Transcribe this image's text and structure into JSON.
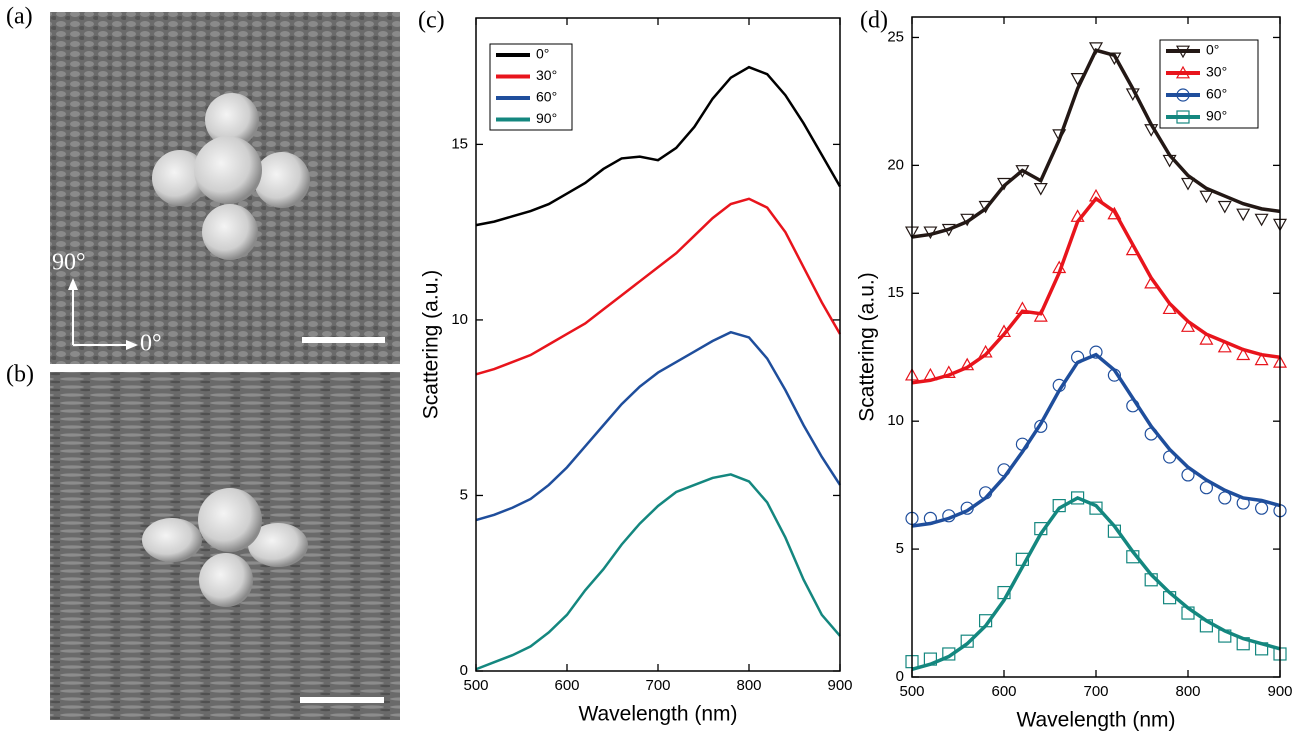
{
  "images": [
    {
      "label": "(a)",
      "annotations": [
        "90°",
        "0°"
      ]
    },
    {
      "label": "(b)"
    }
  ],
  "chart_data": [
    {
      "type": "line",
      "label": "(c)",
      "x_label": "Wavelength (nm)",
      "y_label": "Scattering (a.u.)",
      "x": [
        500,
        520,
        540,
        560,
        580,
        600,
        620,
        640,
        660,
        680,
        700,
        720,
        740,
        760,
        780,
        800,
        820,
        840,
        860,
        880,
        900
      ],
      "xlim": [
        500,
        900
      ],
      "xticks": [
        500,
        600,
        700,
        800,
        900
      ],
      "ylim": [
        0,
        18.6
      ],
      "yticks": [
        0,
        5,
        10,
        15
      ],
      "series": [
        {
          "name": "0°",
          "color": "#000000",
          "values": [
            12.7,
            12.8,
            12.95,
            13.1,
            13.3,
            13.6,
            13.9,
            14.3,
            14.6,
            14.65,
            14.55,
            14.9,
            15.5,
            16.3,
            16.9,
            17.2,
            17.0,
            16.4,
            15.6,
            14.7,
            13.8
          ]
        },
        {
          "name": "30°",
          "color": "#e8141c",
          "values": [
            8.45,
            8.6,
            8.8,
            9.0,
            9.3,
            9.6,
            9.9,
            10.3,
            10.7,
            11.1,
            11.5,
            11.9,
            12.4,
            12.9,
            13.3,
            13.45,
            13.2,
            12.5,
            11.5,
            10.5,
            9.6
          ]
        },
        {
          "name": "60°",
          "color": "#1f4e9c",
          "values": [
            4.3,
            4.45,
            4.65,
            4.9,
            5.3,
            5.8,
            6.4,
            7.0,
            7.6,
            8.1,
            8.5,
            8.8,
            9.1,
            9.4,
            9.65,
            9.5,
            8.9,
            8.0,
            7.0,
            6.1,
            5.3
          ]
        },
        {
          "name": "90°",
          "color": "#14877f",
          "values": [
            0.05,
            0.25,
            0.45,
            0.7,
            1.1,
            1.6,
            2.3,
            2.9,
            3.6,
            4.2,
            4.7,
            5.1,
            5.3,
            5.5,
            5.6,
            5.4,
            4.8,
            3.8,
            2.6,
            1.6,
            1.0
          ]
        }
      ]
    },
    {
      "type": "line",
      "label": "(d)",
      "x_label": "Wavelength (nm)",
      "y_label": "Scattering (a.u.)",
      "x": [
        500,
        520,
        540,
        560,
        580,
        600,
        620,
        640,
        660,
        680,
        700,
        720,
        740,
        760,
        780,
        800,
        820,
        840,
        860,
        880,
        900
      ],
      "xlim": [
        500,
        900
      ],
      "xticks": [
        500,
        600,
        700,
        800,
        900
      ],
      "ylim": [
        0,
        25.8
      ],
      "yticks": [
        0,
        5,
        10,
        15,
        20,
        25
      ],
      "series": [
        {
          "name": "0°",
          "color": "#231815",
          "marker": "triangle-down",
          "values": [
            17.2,
            17.3,
            17.5,
            17.8,
            18.3,
            19.2,
            19.8,
            19.4,
            21.0,
            23.0,
            24.5,
            24.3,
            23.0,
            21.6,
            20.4,
            19.6,
            19.1,
            18.8,
            18.5,
            18.3,
            18.2
          ],
          "marker_values": [
            17.4,
            17.4,
            17.5,
            17.9,
            18.4,
            19.3,
            19.8,
            19.1,
            21.2,
            23.4,
            24.6,
            24.2,
            22.8,
            21.4,
            20.2,
            19.3,
            18.8,
            18.4,
            18.1,
            17.9,
            17.7
          ]
        },
        {
          "name": "30°",
          "color": "#e8141c",
          "marker": "triangle-up",
          "values": [
            11.5,
            11.6,
            11.8,
            12.1,
            12.6,
            13.4,
            14.3,
            14.2,
            15.8,
            17.8,
            18.7,
            18.2,
            16.9,
            15.6,
            14.6,
            13.9,
            13.4,
            13.1,
            12.8,
            12.6,
            12.5
          ],
          "marker_values": [
            11.8,
            11.8,
            11.9,
            12.2,
            12.7,
            13.5,
            14.4,
            14.1,
            16.0,
            18.0,
            18.8,
            18.1,
            16.7,
            15.4,
            14.4,
            13.7,
            13.2,
            12.9,
            12.6,
            12.4,
            12.3
          ]
        },
        {
          "name": "60°",
          "color": "#1f4e9c",
          "marker": "circle",
          "values": [
            5.9,
            6.0,
            6.2,
            6.5,
            7.0,
            7.8,
            8.8,
            9.9,
            11.2,
            12.3,
            12.6,
            12.0,
            10.9,
            9.8,
            8.9,
            8.2,
            7.7,
            7.3,
            7.0,
            6.9,
            6.7
          ],
          "marker_values": [
            6.2,
            6.2,
            6.3,
            6.6,
            7.2,
            8.1,
            9.1,
            9.8,
            11.4,
            12.5,
            12.7,
            11.8,
            10.6,
            9.5,
            8.6,
            7.9,
            7.4,
            7.0,
            6.8,
            6.6,
            6.5
          ]
        },
        {
          "name": "90°",
          "color": "#14877f",
          "marker": "square",
          "values": [
            0.3,
            0.5,
            0.8,
            1.3,
            2.0,
            3.0,
            4.3,
            5.6,
            6.6,
            7.0,
            6.7,
            5.9,
            4.9,
            4.0,
            3.3,
            2.7,
            2.2,
            1.8,
            1.5,
            1.3,
            1.1
          ],
          "marker_values": [
            0.6,
            0.7,
            0.9,
            1.4,
            2.2,
            3.3,
            4.6,
            5.8,
            6.7,
            7.0,
            6.6,
            5.7,
            4.7,
            3.8,
            3.1,
            2.5,
            2.0,
            1.6,
            1.3,
            1.1,
            0.9
          ]
        }
      ]
    }
  ]
}
